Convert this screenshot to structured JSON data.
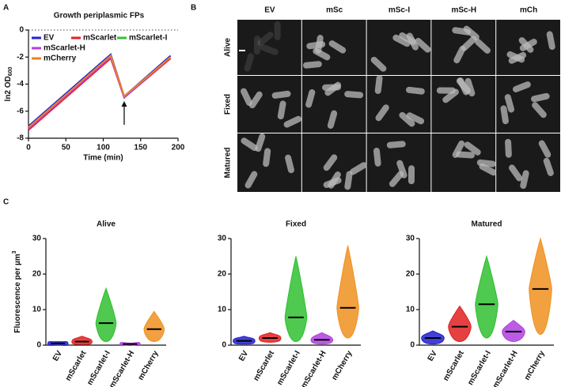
{
  "chart_data": [
    {
      "type": "line",
      "panel_label": "A",
      "title": "Growth periplasmic FPs",
      "xlabel": "Time (min)",
      "ylabel": "ln2 OD",
      "ylabel_sub": "600",
      "x": [
        0,
        110,
        128,
        190
      ],
      "series": [
        {
          "name": "EV",
          "color": "#2222d8",
          "values": [
            -7.1,
            -1.8,
            -4.9,
            -1.9
          ]
        },
        {
          "name": "mScarlet",
          "color": "#e8202a",
          "values": [
            -7.4,
            -2.1,
            -5.0,
            -2.1
          ]
        },
        {
          "name": "mScarlet-I",
          "color": "#33c433",
          "values": [
            -7.2,
            -1.9,
            -5.0,
            -2.0
          ]
        },
        {
          "name": "mScarlet-H",
          "color": "#b040e0",
          "values": [
            -7.3,
            -2.0,
            -5.0,
            -2.0
          ]
        },
        {
          "name": "mCherry",
          "color": "#f08020",
          "values": [
            -7.2,
            -1.9,
            -4.9,
            -2.0
          ]
        }
      ],
      "xlim": [
        0,
        200
      ],
      "xticks": [
        0,
        50,
        100,
        150,
        200
      ],
      "ylim": [
        -8,
        0
      ],
      "yticks": [
        -8,
        -6,
        -4,
        -2,
        0
      ],
      "reference_line": 0,
      "arrow_x": 128
    },
    {
      "type": "strip",
      "panel_label": "C",
      "title": "Alive",
      "ylabel": "Fluorescence per µm",
      "ylabel_sup": "3",
      "categories": [
        "EV",
        "mScarlet",
        "mScarlet-I",
        "mScarlet-H",
        "mCherry"
      ],
      "colors": [
        "#2020d0",
        "#e02020",
        "#30c030",
        "#b040e0",
        "#f09020"
      ],
      "medians": [
        0.5,
        1.0,
        6.2,
        0.3,
        4.5
      ],
      "mins": [
        0,
        0.2,
        1,
        0.1,
        1
      ],
      "maxs": [
        1,
        2.5,
        16,
        0.6,
        9.5
      ],
      "ylim": [
        0,
        30
      ],
      "yticks": [
        0,
        10,
        20,
        30
      ]
    },
    {
      "type": "strip",
      "title": "Fixed",
      "categories": [
        "EV",
        "mScarlet",
        "mScarlet-I",
        "mScarlet-H",
        "mCherry"
      ],
      "colors": [
        "#2020d0",
        "#e02020",
        "#30c030",
        "#b040e0",
        "#f09020"
      ],
      "medians": [
        1.2,
        2.0,
        7.8,
        1.5,
        10.5
      ],
      "mins": [
        0.3,
        0.8,
        1,
        0.3,
        2
      ],
      "maxs": [
        2.5,
        3.5,
        25,
        3.5,
        28
      ],
      "ylim": [
        0,
        30
      ],
      "yticks": [
        0,
        10,
        20,
        30
      ]
    },
    {
      "type": "strip",
      "title": "Matured",
      "categories": [
        "EV",
        "mScarlet",
        "mScarlet-I",
        "mScarlet-H",
        "mCherry"
      ],
      "colors": [
        "#2020d0",
        "#e02020",
        "#30c030",
        "#b040e0",
        "#f09020"
      ],
      "medians": [
        2.0,
        5.2,
        11.5,
        3.8,
        15.8
      ],
      "mins": [
        0.3,
        1,
        2,
        1,
        3
      ],
      "maxs": [
        4,
        11,
        25,
        7,
        30
      ],
      "ylim": [
        0,
        30
      ],
      "yticks": [
        0,
        10,
        20,
        30
      ]
    }
  ],
  "image_panel": {
    "panel_label": "B",
    "columns": [
      "EV",
      "mSc",
      "mSc-I",
      "mSc-H",
      "mCh"
    ],
    "rows": [
      "Alive",
      "Fixed",
      "Matured"
    ]
  }
}
